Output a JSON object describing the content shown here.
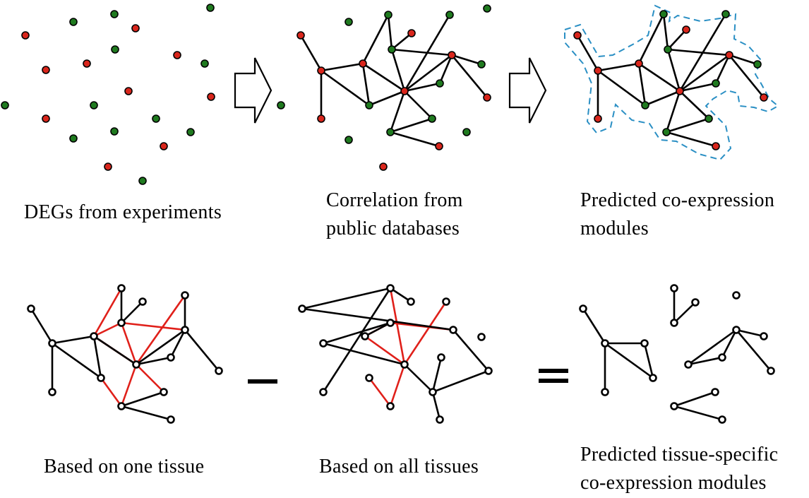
{
  "captions": {
    "degs": "DEGs from experiments",
    "correlation_line1": "Correlation  from",
    "correlation_line2": "public  databases",
    "predicted_line1": "Predicted  co-expression",
    "predicted_line2": "modules",
    "one_tissue": "Based on one tissue",
    "all_tissues": "Based on all tissues",
    "tissue_specific_line1": "Predicted  tissue-specific",
    "tissue_specific_line2": "co-expression  modules"
  },
  "operators": {
    "minus": "–",
    "equals": "="
  },
  "colors": {
    "red_node": "#d9261c",
    "green_node": "#1f7a1f",
    "red_edge": "#e0201a",
    "module_outline": "#2a8fc4"
  }
}
